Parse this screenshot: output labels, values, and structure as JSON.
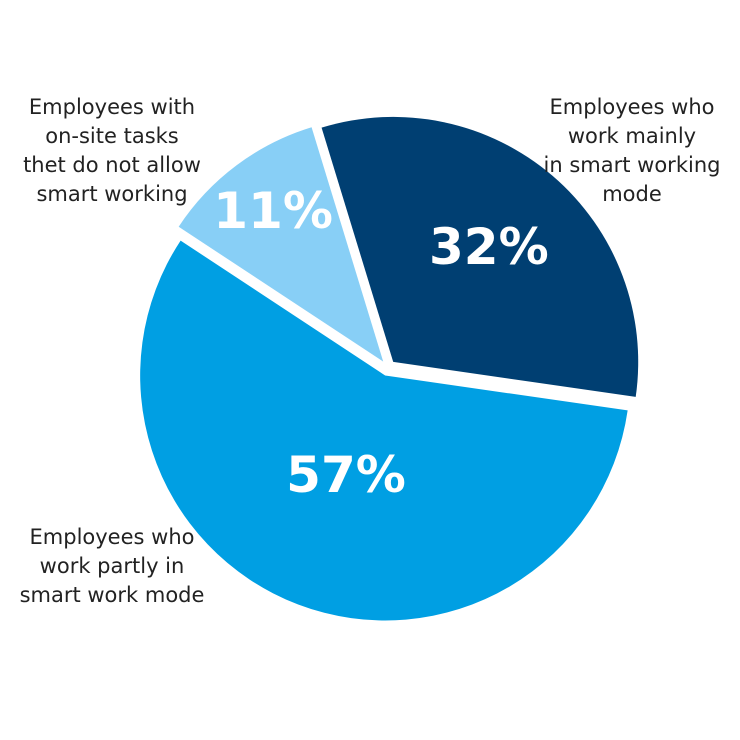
{
  "chart_data": {
    "type": "pie",
    "categories": [
      "Employees  who\nwork mainly\nin smart working\nmode",
      "Employees  who\nwork partly in\nsmart work mode",
      "Employees with\non-site tasks\nthet do not allow\nsmart working"
    ],
    "values": [
      32,
      57,
      11
    ],
    "value_labels": [
      "32%",
      "57%",
      "11%"
    ],
    "colors": [
      "#003f72",
      "#009fe3",
      "#88cff6"
    ]
  }
}
